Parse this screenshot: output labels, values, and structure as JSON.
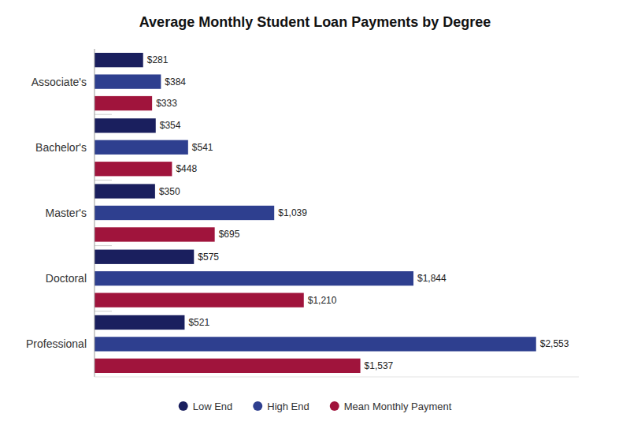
{
  "chart_data": {
    "type": "bar",
    "orientation": "horizontal",
    "title": "Average Monthly Student Loan Payments by Degree",
    "categories": [
      "Associate's",
      "Bachelor's",
      "Master's",
      "Doctoral",
      "Professional"
    ],
    "series": [
      {
        "name": "Low End",
        "color": "#1a1f5e",
        "values": [
          281,
          354,
          350,
          575,
          521
        ],
        "value_labels": [
          "$281",
          "$354",
          "$350",
          "$575",
          "$521"
        ]
      },
      {
        "name": "High End",
        "color": "#2e3f8f",
        "values": [
          384,
          541,
          1039,
          1844,
          2553
        ],
        "value_labels": [
          "$384",
          "$541",
          "$1,039",
          "$1,844",
          "$2,553"
        ]
      },
      {
        "name": "Mean Monthly Payment",
        "color": "#a0143c",
        "values": [
          333,
          448,
          695,
          1210,
          1537
        ],
        "value_labels": [
          "$333",
          "$448",
          "$695",
          "$1,210",
          "$1,537"
        ]
      }
    ],
    "xlim": [
      0,
      2800
    ],
    "grid": false,
    "legend": "bottom",
    "data_labels": true,
    "tick_labels": "y"
  }
}
